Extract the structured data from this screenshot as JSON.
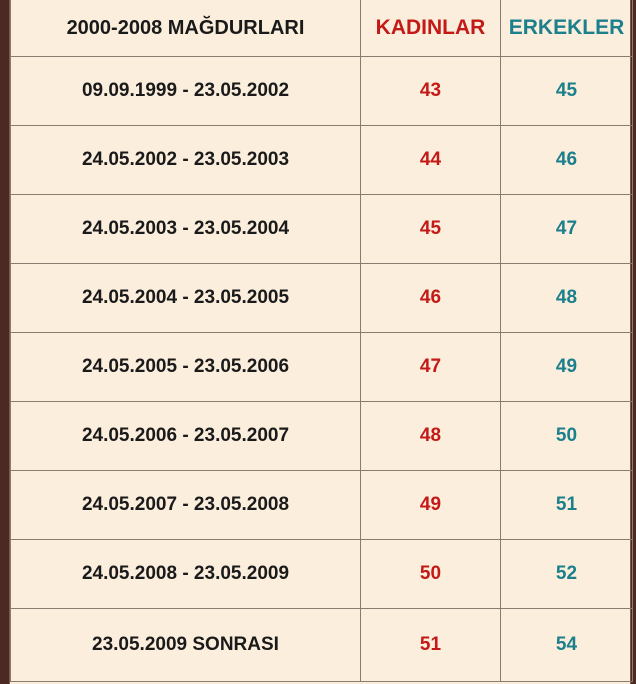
{
  "table": {
    "headers": {
      "period": "2000-2008 MAĞDURLARI",
      "women": "KADINLAR",
      "men": "ERKEKLER"
    },
    "colors": {
      "women": "#c41a17",
      "men": "#1b7f8c",
      "background": "#fbeedd"
    },
    "rows": [
      {
        "period": "09.09.1999 - 23.05.2002",
        "women": "43",
        "men": "45"
      },
      {
        "period": "24.05.2002 - 23.05.2003",
        "women": "44",
        "men": "46"
      },
      {
        "period": "24.05.2003 - 23.05.2004",
        "women": "45",
        "men": "47"
      },
      {
        "period": "24.05.2004 - 23.05.2005",
        "women": "46",
        "men": "48"
      },
      {
        "period": "24.05.2005 - 23.05.2006",
        "women": "47",
        "men": "49"
      },
      {
        "period": "24.05.2006 - 23.05.2007",
        "women": "48",
        "men": "50"
      },
      {
        "period": "24.05.2007 - 23.05.2008",
        "women": "49",
        "men": "51"
      },
      {
        "period": "24.05.2008 - 23.05.2009",
        "women": "50",
        "men": "52"
      },
      {
        "period": "23.05.2009 SONRASI",
        "women": "51",
        "men": "54"
      }
    ]
  }
}
